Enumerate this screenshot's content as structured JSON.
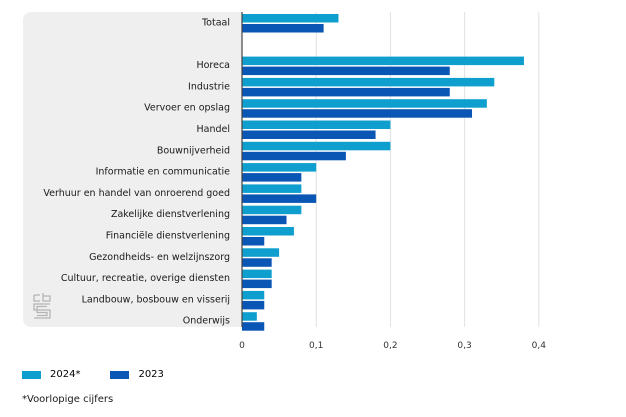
{
  "chart_data": {
    "type": "bar",
    "orientation": "horizontal",
    "title": "",
    "xlabel": "",
    "ylabel": "",
    "xlim": [
      0,
      0.4
    ],
    "ticks": [
      "0",
      "0,1",
      "0,2",
      "0,3",
      "0,4"
    ],
    "tick_values": [
      0,
      0.1,
      0.2,
      0.3,
      0.4
    ],
    "grid": true,
    "categories": [
      "Totaal",
      "",
      "Horeca",
      "Industrie",
      "Vervoer en opslag",
      "Handel",
      "Bouwnijverheid",
      "Informatie en communicatie",
      "Verhuur en handel van onroerend goed",
      "Zakelijke dienstverlening",
      "Financiële dienstverlening",
      "Gezondheids- en welzijnszorg",
      "Cultuur, recreatie, overige diensten",
      "Landbouw, bosbouw en visserij",
      "Onderwijs"
    ],
    "series": [
      {
        "name": "2024*",
        "color": "#0e9fce",
        "values": [
          0.13,
          null,
          0.38,
          0.34,
          0.33,
          0.2,
          0.2,
          0.1,
          0.08,
          0.08,
          0.07,
          0.05,
          0.04,
          0.03,
          0.02
        ]
      },
      {
        "name": "2023",
        "color": "#0a56b4",
        "values": [
          0.11,
          null,
          0.28,
          0.28,
          0.31,
          0.18,
          0.14,
          0.08,
          0.1,
          0.06,
          0.03,
          0.04,
          0.04,
          0.03,
          0.03
        ]
      }
    ],
    "legend_position": "bottom-left",
    "footnote": "*Voorlopige cijfers"
  },
  "legend": {
    "items": [
      {
        "label": "2024*",
        "color": "#0e9fce"
      },
      {
        "label": "2023",
        "color": "#0a56b4"
      }
    ]
  },
  "footnote": "*Voorlopige cijfers",
  "logo": {
    "icon": "cbs-logo-icon"
  }
}
